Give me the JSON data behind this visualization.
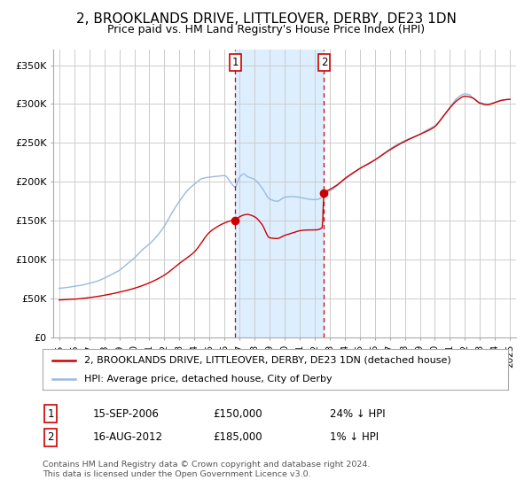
{
  "title": "2, BROOKLANDS DRIVE, LITTLEOVER, DERBY, DE23 1DN",
  "subtitle": "Price paid vs. HM Land Registry's House Price Index (HPI)",
  "ylabel_ticks": [
    "£0",
    "£50K",
    "£100K",
    "£150K",
    "£200K",
    "£250K",
    "£300K",
    "£350K"
  ],
  "ytick_vals": [
    0,
    50000,
    100000,
    150000,
    200000,
    250000,
    300000,
    350000
  ],
  "ylim": [
    0,
    370000
  ],
  "xlim_start": 1994.6,
  "xlim_end": 2025.4,
  "sale1_x": 2006.71,
  "sale1_y": 150000,
  "sale1_label": "1",
  "sale2_x": 2012.62,
  "sale2_y": 185000,
  "sale2_label": "2",
  "legend_red_label": "2, BROOKLANDS DRIVE, LITTLEOVER, DERBY, DE23 1DN (detached house)",
  "legend_blue_label": "HPI: Average price, detached house, City of Derby",
  "table_row1_num": "1",
  "table_row1_date": "15-SEP-2006",
  "table_row1_price": "£150,000",
  "table_row1_hpi": "24% ↓ HPI",
  "table_row2_num": "2",
  "table_row2_date": "16-AUG-2012",
  "table_row2_price": "£185,000",
  "table_row2_hpi": "1% ↓ HPI",
  "footnote_line1": "Contains HM Land Registry data © Crown copyright and database right 2024.",
  "footnote_line2": "This data is licensed under the Open Government Licence v3.0.",
  "red_color": "#cc0000",
  "blue_color": "#99bbdd",
  "bg_color": "#ffffff",
  "grid_color": "#cccccc",
  "vline_color": "#cc0000",
  "vspan_color": "#ddeeff",
  "title_fontsize": 11,
  "subtitle_fontsize": 9,
  "tick_fontsize": 8,
  "legend_fontsize": 8,
  "table_fontsize": 8.5,
  "footnote_fontsize": 6.8
}
